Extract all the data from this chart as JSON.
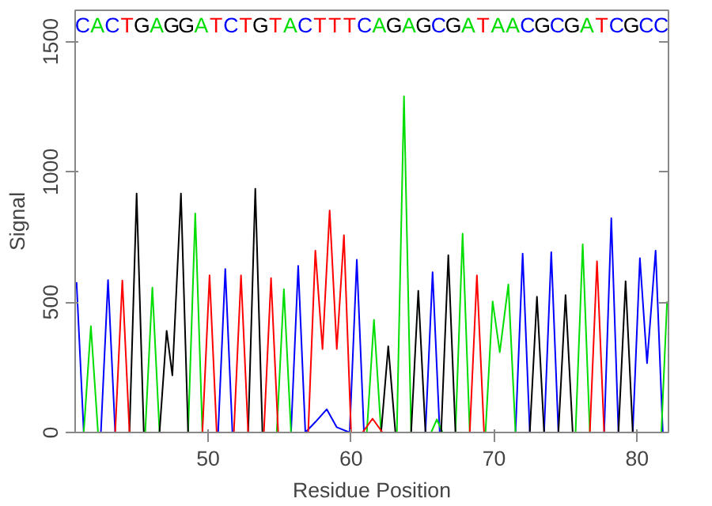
{
  "chart_data": {
    "type": "line",
    "xlabel": "Residue Position",
    "ylabel": "Signal",
    "xlim": [
      40.7,
      82.2
    ],
    "ylim": [
      0,
      1620
    ],
    "xticks": [
      50,
      60,
      70,
      80
    ],
    "yticks": [
      0,
      500,
      1000,
      1500
    ],
    "grid": false,
    "marker": "none",
    "line_style": "solid",
    "series": [
      {
        "color": "#0000ff",
        "x": [
          40.7,
          40.8,
          41.3,
          42.5,
          43.0,
          43.5,
          50.7,
          51.2,
          51.7,
          55.8,
          56.3,
          56.8,
          57.5,
          58.3,
          59.0,
          59.9,
          60.4,
          60.9,
          65.2,
          65.7,
          66.2,
          71.5,
          72.0,
          72.5,
          73.5,
          74.0,
          74.5,
          77.7,
          78.2,
          78.7,
          79.7,
          80.2,
          80.7,
          81.3,
          81.8
        ],
        "values": [
          560,
          574,
          0,
          0,
          585,
          0,
          0,
          627,
          0,
          0,
          639,
          0,
          40,
          89,
          20,
          0,
          663,
          0,
          0,
          615,
          0,
          0,
          686,
          0,
          0,
          692,
          0,
          0,
          822,
          0,
          0,
          669,
          266,
          698,
          0
        ]
      },
      {
        "color": "#00dd00",
        "x": [
          41.3,
          41.8,
          42.3,
          45.6,
          46.1,
          46.6,
          48.6,
          49.1,
          49.6,
          54.8,
          55.3,
          55.8,
          61.1,
          61.6,
          62.1,
          63.2,
          63.7,
          64.2,
          65.6,
          66.0,
          66.4,
          67.3,
          67.8,
          68.3,
          69.4,
          69.9,
          70.4,
          71.0,
          71.5,
          75.7,
          76.2,
          76.7,
          81.7,
          82.1
        ],
        "values": [
          0,
          408,
          0,
          0,
          556,
          0,
          0,
          840,
          0,
          0,
          550,
          0,
          0,
          432,
          0,
          0,
          1290,
          0,
          0,
          50,
          0,
          0,
          763,
          0,
          0,
          503,
          308,
          568,
          0,
          0,
          722,
          0,
          0,
          503
        ]
      },
      {
        "color": "#000000",
        "x": [
          44.5,
          45.0,
          45.5,
          46.6,
          47.1,
          47.5,
          48.1,
          48.6,
          52.8,
          53.3,
          53.8,
          62.1,
          62.6,
          63.1,
          64.2,
          64.7,
          65.2,
          66.3,
          66.8,
          67.3,
          72.5,
          73.0,
          73.5,
          74.5,
          75.0,
          75.5,
          78.7,
          79.2,
          79.7
        ],
        "values": [
          0,
          917,
          0,
          0,
          390,
          219,
          917,
          0,
          0,
          935,
          0,
          0,
          331,
          0,
          0,
          544,
          0,
          0,
          680,
          0,
          0,
          521,
          0,
          0,
          527,
          0,
          0,
          580,
          0
        ]
      },
      {
        "color": "#ff0000",
        "x": [
          43.5,
          44.0,
          44.5,
          49.6,
          50.1,
          50.6,
          51.8,
          52.3,
          52.8,
          53.9,
          54.4,
          54.9,
          57.0,
          57.5,
          58.0,
          58.5,
          59.0,
          59.5,
          60.0,
          60.8,
          61.5,
          62.2,
          68.3,
          68.8,
          69.3,
          76.7,
          77.2,
          77.7
        ],
        "values": [
          0,
          583,
          0,
          0,
          603,
          0,
          0,
          603,
          0,
          0,
          592,
          0,
          0,
          698,
          320,
          852,
          320,
          757,
          0,
          0,
          53,
          0,
          0,
          603,
          0,
          0,
          657,
          0
        ]
      }
    ],
    "annotations": [
      "CACTGAGGATCTGTACTTTCAGAGCGATAACGCGATCGCC"
    ]
  }
}
